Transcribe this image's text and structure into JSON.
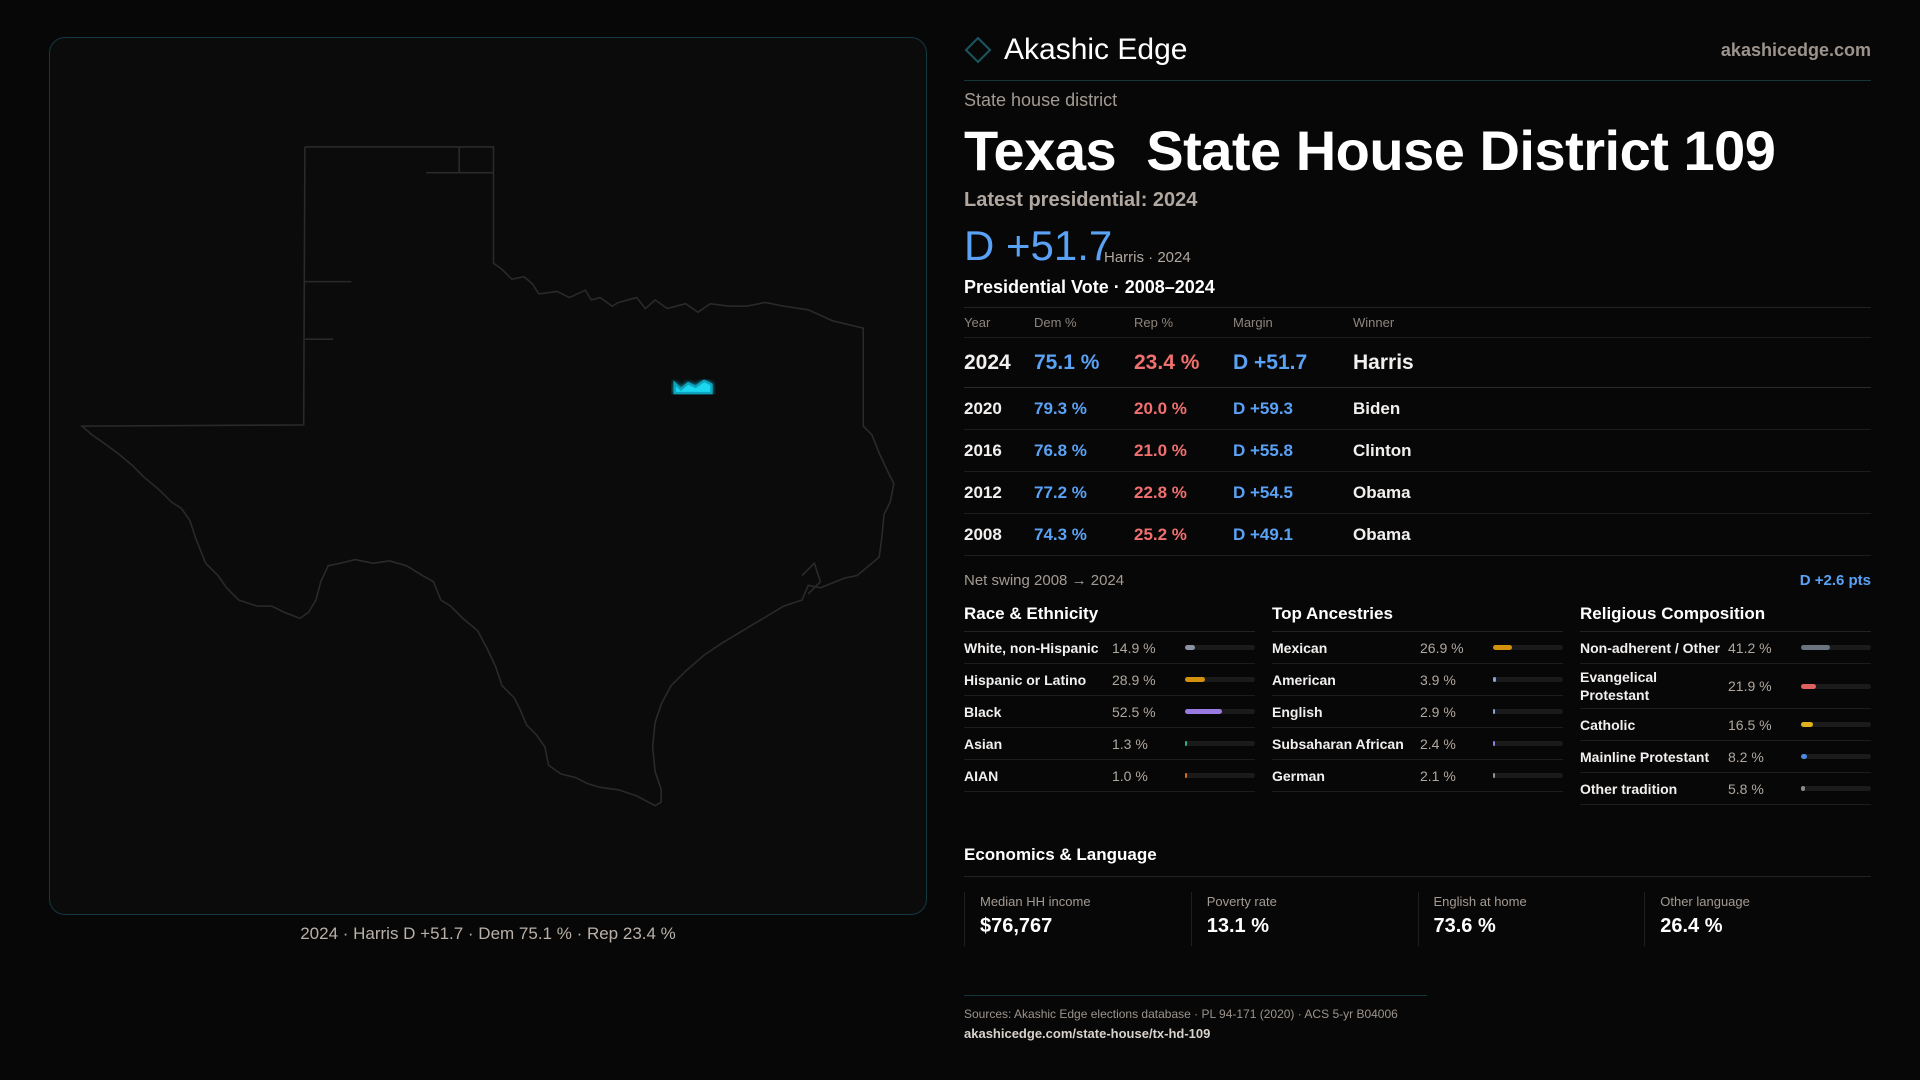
{
  "brand": {
    "name": "Akashic Edge",
    "site": "akashicedge.com",
    "accent": "#1fd7f0"
  },
  "header": {
    "kicker": "State house district",
    "title": "Texas  State House District 109",
    "latest": "Latest presidential: 2024",
    "margin": "D +51.7",
    "margin_sub": "Harris · 2024"
  },
  "map": {
    "caption": "2024 · Harris D +51.7 · Dem 75.1 % · Rep 23.4 %",
    "highlight_color": "#1fd7f0",
    "outline_color": "#2a2a2a"
  },
  "votes": {
    "title": "Presidential Vote · 2008–2024",
    "headers": [
      "Year",
      "Dem %",
      "Rep %",
      "Margin",
      "Winner"
    ],
    "rows": [
      [
        "2024",
        "75.1 %",
        "23.4 %",
        "D +51.7",
        "Harris"
      ],
      [
        "2020",
        "79.3 %",
        "20.0 %",
        "D +59.3",
        "Biden"
      ],
      [
        "2016",
        "76.8 %",
        "21.0 %",
        "D +55.8",
        "Clinton"
      ],
      [
        "2012",
        "77.2 %",
        "22.8 %",
        "D +54.5",
        "Obama"
      ],
      [
        "2008",
        "74.3 %",
        "25.2 %",
        "D +49.1",
        "Obama"
      ]
    ],
    "swing_label": "Net swing 2008 → 2024",
    "swing_value": "D +2.6 pts"
  },
  "colors": {
    "dem": "#5aa2f5",
    "rep": "#f07070"
  },
  "demographics": [
    {
      "title": "Race & Ethnicity",
      "items": [
        {
          "label": "White, non-Hispanic",
          "value": "14.9 %",
          "pct": 14.9,
          "color": "#8a93a3"
        },
        {
          "label": "Hispanic or Latino",
          "value": "28.9 %",
          "pct": 28.9,
          "color": "#d4900f"
        },
        {
          "label": "Black",
          "value": "52.5 %",
          "pct": 52.5,
          "color": "#9a7ae0"
        },
        {
          "label": "Asian",
          "value": "1.3 %",
          "pct": 1.3,
          "color": "#2fb37a"
        },
        {
          "label": "AIAN",
          "value": "1.0 %",
          "pct": 1.0,
          "color": "#d4701a"
        }
      ]
    },
    {
      "title": "Top Ancestries",
      "items": [
        {
          "label": "Mexican",
          "value": "26.9 %",
          "pct": 26.9,
          "color": "#d4900f"
        },
        {
          "label": "American",
          "value": "3.9 %",
          "pct": 3.9,
          "color": "#8a9fd8"
        },
        {
          "label": "English",
          "value": "2.9 %",
          "pct": 2.9,
          "color": "#8a9fd8"
        },
        {
          "label": "Subsaharan African",
          "value": "2.4 %",
          "pct": 2.4,
          "color": "#9a7ae0"
        },
        {
          "label": "German",
          "value": "2.1 %",
          "pct": 2.1,
          "color": "#8a93a3"
        }
      ]
    },
    {
      "title": "Religious Composition",
      "items": [
        {
          "label": "Non-adherent / Other",
          "value": "41.2 %",
          "pct": 41.2,
          "color": "#6b7280"
        },
        {
          "label": "Evangelical Protestant",
          "value": "21.9 %",
          "pct": 21.9,
          "color": "#e06060"
        },
        {
          "label": "Catholic",
          "value": "16.5 %",
          "pct": 16.5,
          "color": "#e0b020"
        },
        {
          "label": "Mainline Protestant",
          "value": "8.2 %",
          "pct": 8.2,
          "color": "#4a8ae0"
        },
        {
          "label": "Other tradition",
          "value": "5.8 %",
          "pct": 5.8,
          "color": "#8a8a8a"
        }
      ]
    }
  ],
  "economics": {
    "title": "Economics & Language",
    "items": [
      {
        "label": "Median HH income",
        "value": "$76,767"
      },
      {
        "label": "Poverty rate",
        "value": "13.1 %"
      },
      {
        "label": "English at home",
        "value": "73.6 %"
      },
      {
        "label": "Other language",
        "value": "26.4 %"
      }
    ]
  },
  "footer": {
    "sources": "Sources: Akashic Edge elections database · PL 94-171 (2020) · ACS 5-yr B04006",
    "url": "akashicedge.com/state-house/tx-hd-109"
  }
}
